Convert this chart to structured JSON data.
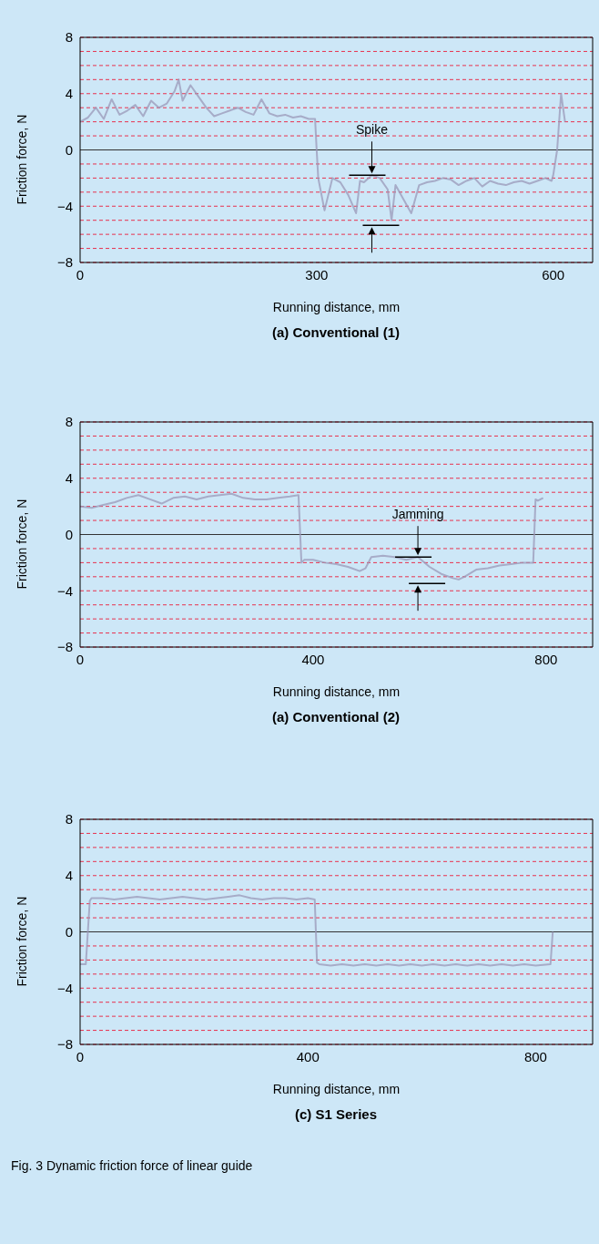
{
  "chart_data": [
    {
      "type": "line",
      "title": "(a) Conventional (1)",
      "xlabel": "Running distance, mm",
      "ylabel": "Friction force, N",
      "series": [
        {
          "color": "#9a98b8",
          "x": [
            0,
            10,
            20,
            30,
            40,
            50,
            60,
            70,
            80,
            90,
            100,
            110,
            120,
            125,
            130,
            140,
            150,
            160,
            170,
            180,
            190,
            200,
            210,
            220,
            230,
            240,
            250,
            260,
            270,
            280,
            290,
            298,
            300,
            302,
            310,
            320,
            330,
            340,
            350,
            355,
            360,
            370,
            380,
            390,
            395,
            400,
            410,
            420,
            430,
            440,
            450,
            460,
            470,
            480,
            490,
            500,
            510,
            520,
            530,
            540,
            550,
            560,
            570,
            580,
            590,
            598,
            600,
            605,
            610,
            615
          ],
          "values": [
            2,
            2.3,
            3,
            2.2,
            3.6,
            2.5,
            2.8,
            3.2,
            2.4,
            3.5,
            3,
            3.3,
            4.2,
            5,
            3.5,
            4.6,
            3.8,
            3,
            2.4,
            2.6,
            2.8,
            3,
            2.7,
            2.5,
            3.6,
            2.6,
            2.4,
            2.5,
            2.3,
            2.4,
            2.2,
            2.2,
            0,
            -2,
            -4.3,
            -2,
            -2.3,
            -3.2,
            -4.5,
            -2.2,
            -2.3,
            -1.8,
            -2,
            -2.8,
            -5,
            -2.5,
            -3.5,
            -4.5,
            -2.5,
            -2.3,
            -2.2,
            -2,
            -2.1,
            -2.5,
            -2.2,
            -2,
            -2.6,
            -2.2,
            -2.4,
            -2.5,
            -2.3,
            -2.2,
            -2.4,
            -2.2,
            -2,
            -2.2,
            -1.8,
            0,
            4,
            2
          ]
        }
      ],
      "xlim": [
        0,
        650
      ],
      "xticks": [
        0,
        300,
        600
      ],
      "ylim": [
        -8,
        8
      ],
      "yticks": [
        {
          "value": -8,
          "label": "−8"
        },
        {
          "value": -7,
          "label": null
        },
        {
          "value": -6,
          "label": null
        },
        {
          "value": -5,
          "label": null
        },
        {
          "value": -4,
          "label": "−4"
        },
        {
          "value": -3,
          "label": null
        },
        {
          "value": -2,
          "label": null
        },
        {
          "value": -1,
          "label": null
        },
        0,
        {
          "value": 1,
          "label": null
        },
        {
          "value": 2,
          "label": null
        },
        {
          "value": 3,
          "label": null
        },
        4,
        {
          "value": 5,
          "label": null
        },
        {
          "value": 6,
          "label": null
        },
        {
          "value": 7,
          "label": null
        },
        8
      ],
      "grid": "y",
      "ref_lines": [
        {
          "axis": "y",
          "value": 0,
          "color": "#333333",
          "line_style": "solid"
        }
      ],
      "annotations": [
        {
          "text": "Spike",
          "x": 370,
          "y": -1.8
        }
      ]
    },
    {
      "type": "line",
      "title": "(a) Conventional (2)",
      "xlabel": "Running distance, mm",
      "ylabel": "Friction force, N",
      "series": [
        {
          "color": "#9a98b8",
          "x": [
            0,
            20,
            40,
            60,
            80,
            100,
            120,
            140,
            160,
            180,
            200,
            220,
            240,
            260,
            280,
            300,
            320,
            340,
            360,
            375,
            380,
            385,
            400,
            420,
            440,
            460,
            480,
            490,
            500,
            520,
            540,
            560,
            580,
            600,
            620,
            640,
            650,
            660,
            680,
            700,
            720,
            740,
            760,
            778,
            782,
            786,
            795
          ],
          "values": [
            2,
            1.9,
            2.1,
            2.3,
            2.6,
            2.8,
            2.5,
            2.2,
            2.6,
            2.7,
            2.5,
            2.7,
            2.8,
            2.9,
            2.6,
            2.5,
            2.5,
            2.6,
            2.7,
            2.8,
            -2,
            -1.8,
            -1.8,
            -2,
            -2.1,
            -2.3,
            -2.6,
            -2.4,
            -1.6,
            -1.5,
            -1.6,
            -1.8,
            -1.6,
            -2.3,
            -2.8,
            -3.1,
            -3.2,
            -3,
            -2.5,
            -2.4,
            -2.2,
            -2.1,
            -2,
            -2,
            2.5,
            2.4,
            2.6
          ]
        }
      ],
      "xlim": [
        0,
        880
      ],
      "xticks": [
        0,
        400,
        800
      ],
      "ylim": [
        -8,
        8
      ],
      "yticks": [
        {
          "value": -8,
          "label": "−8"
        },
        {
          "value": -7,
          "label": null
        },
        {
          "value": -6,
          "label": null
        },
        {
          "value": -5,
          "label": null
        },
        {
          "value": -4,
          "label": "−4"
        },
        {
          "value": -3,
          "label": null
        },
        {
          "value": -2,
          "label": null
        },
        {
          "value": -1,
          "label": null
        },
        0,
        {
          "value": 1,
          "label": null
        },
        {
          "value": 2,
          "label": null
        },
        {
          "value": 3,
          "label": null
        },
        4,
        {
          "value": 5,
          "label": null
        },
        {
          "value": 6,
          "label": null
        },
        {
          "value": 7,
          "label": null
        },
        8
      ],
      "grid": "y",
      "ref_lines": [
        {
          "axis": "y",
          "value": 0,
          "color": "#333333",
          "line_style": "solid"
        }
      ],
      "annotations": [
        {
          "text": "Jamming",
          "x": 580,
          "y": -1.6
        }
      ]
    },
    {
      "type": "line",
      "title": "(c) S1 Series",
      "xlabel": "Running distance, mm",
      "ylabel": "Friction force, N",
      "series": [
        {
          "color": "#9a98b8",
          "x": [
            0,
            10,
            17,
            20,
            40,
            60,
            80,
            100,
            120,
            140,
            160,
            180,
            200,
            220,
            240,
            260,
            280,
            300,
            320,
            340,
            360,
            380,
            400,
            412,
            416,
            420,
            440,
            460,
            480,
            500,
            520,
            540,
            560,
            580,
            600,
            620,
            640,
            660,
            680,
            700,
            720,
            740,
            760,
            780,
            800,
            826,
            830
          ],
          "values": [
            -2.3,
            -2.3,
            2.2,
            2.4,
            2.4,
            2.3,
            2.4,
            2.5,
            2.4,
            2.3,
            2.4,
            2.5,
            2.4,
            2.3,
            2.4,
            2.5,
            2.6,
            2.4,
            2.3,
            2.4,
            2.4,
            2.3,
            2.4,
            2.3,
            -2.2,
            -2.3,
            -2.4,
            -2.3,
            -2.4,
            -2.3,
            -2.4,
            -2.3,
            -2.4,
            -2.3,
            -2.4,
            -2.3,
            -2.4,
            -2.3,
            -2.4,
            -2.3,
            -2.4,
            -2.3,
            -2.4,
            -2.3,
            -2.4,
            -2.3,
            0
          ]
        }
      ],
      "xlim": [
        0,
        900
      ],
      "xticks": [
        0,
        400,
        800
      ],
      "ylim": [
        -8,
        8
      ],
      "yticks": [
        {
          "value": -8,
          "label": "−8"
        },
        {
          "value": -7,
          "label": null
        },
        {
          "value": -6,
          "label": null
        },
        {
          "value": -5,
          "label": null
        },
        {
          "value": -4,
          "label": "−4"
        },
        {
          "value": -3,
          "label": null
        },
        {
          "value": -2,
          "label": null
        },
        {
          "value": -1,
          "label": null
        },
        0,
        {
          "value": 1,
          "label": null
        },
        {
          "value": 2,
          "label": null
        },
        {
          "value": 3,
          "label": null
        },
        4,
        {
          "value": 5,
          "label": null
        },
        {
          "value": 6,
          "label": null
        },
        {
          "value": 7,
          "label": null
        },
        8
      ],
      "grid": "y",
      "ref_lines": [
        {
          "axis": "y",
          "value": 0,
          "color": "#333333",
          "line_style": "solid"
        }
      ],
      "annotations": [
        "Fig. 3  Dynamic friction force of linear guide"
      ]
    }
  ]
}
